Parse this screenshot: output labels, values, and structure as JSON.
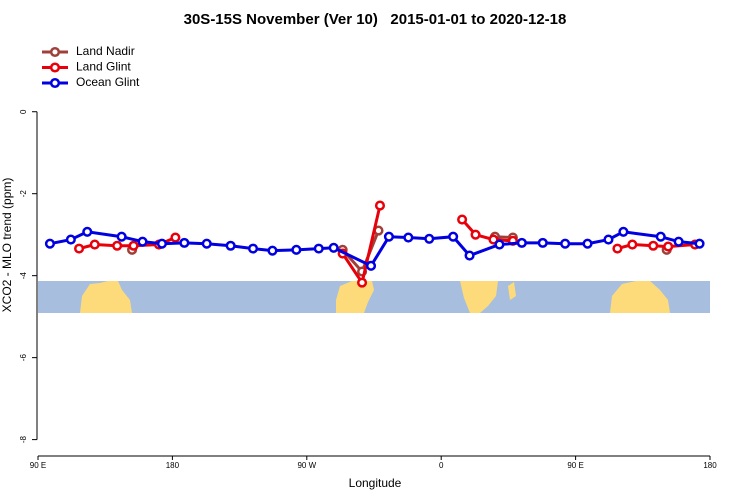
{
  "chart_data": {
    "type": "line",
    "title": "30S-15S November (Ver 10)   2015-01-01 to 2020-12-18",
    "x_label": "Longitude",
    "y_label": "XCO2 - MLO trend (ppm)",
    "xlim": [
      90,
      540
    ],
    "ylim": [
      -8.4,
      1.75
    ],
    "xticks": [
      {
        "value": 90,
        "label": "90 E"
      },
      180,
      {
        "value": 270,
        "label": "90 W"
      },
      {
        "value": 360,
        "label": "0"
      },
      {
        "value": 450,
        "label": "90 E"
      },
      {
        "value": 540,
        "label": "180"
      }
    ],
    "yticks": [
      0,
      -2,
      -4,
      -6,
      -8
    ],
    "legend": "top-left",
    "series": [
      {
        "name": "Land Nadir",
        "color": "#a0403a",
        "x": [
          153,
          null,
          294,
          307,
          318,
          null,
          396,
          408,
          null,
          511
        ],
        "values": [
          -3.37,
          null,
          -3.37,
          -3.9,
          -2.9,
          null,
          -3.05,
          -3.07,
          null,
          -3.37
        ]
      },
      {
        "name": "Land Glint",
        "color": "#e8000b",
        "x": [
          117.5,
          128,
          143,
          154,
          171,
          182,
          null,
          294,
          307,
          319,
          null,
          374,
          383,
          395,
          408,
          null,
          478,
          488,
          502,
          512,
          530
        ],
        "values": [
          -3.34,
          -3.24,
          -3.27,
          -3.27,
          -3.24,
          -3.07,
          null,
          -3.46,
          -4.17,
          -2.29,
          null,
          -2.63,
          -3.0,
          -3.12,
          -3.15,
          null,
          -3.34,
          -3.24,
          -3.27,
          -3.29,
          -3.24
        ]
      },
      {
        "name": "Ocean Glint",
        "color": "#0000e0",
        "x": [
          98,
          112,
          123,
          146,
          160,
          173,
          188,
          203,
          219,
          234,
          247,
          263,
          278,
          288,
          313,
          325,
          338,
          352,
          368,
          379,
          399,
          414,
          428,
          443,
          458,
          472,
          482,
          507,
          519,
          533
        ],
        "values": [
          -3.22,
          -3.12,
          -2.93,
          -3.05,
          -3.17,
          -3.22,
          -3.2,
          -3.22,
          -3.27,
          -3.34,
          -3.39,
          -3.37,
          -3.34,
          -3.32,
          -3.76,
          -3.05,
          -3.07,
          -3.1,
          -3.05,
          -3.51,
          -3.24,
          -3.2,
          -3.2,
          -3.22,
          -3.22,
          -3.12,
          -2.93,
          -3.05,
          -3.17,
          -3.22
        ]
      }
    ]
  }
}
